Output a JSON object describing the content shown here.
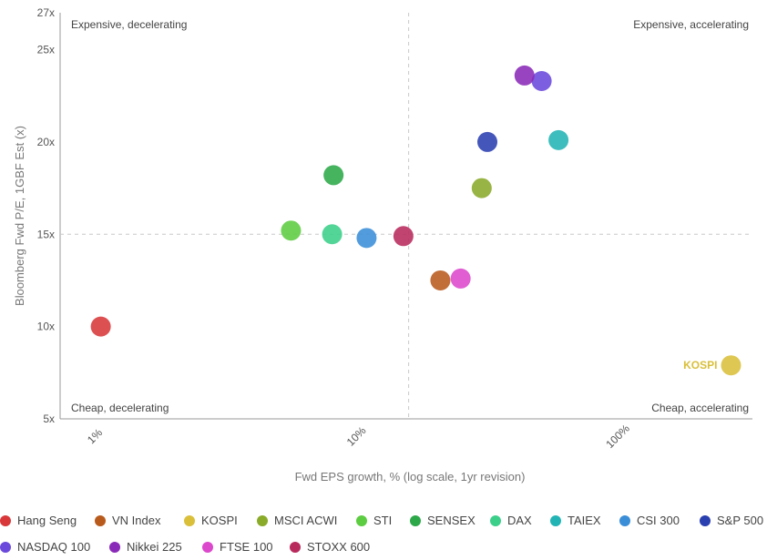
{
  "chart_data": {
    "type": "scatter",
    "title": "",
    "xlabel": "Fwd EPS growth, % (log scale, 1yr revision)",
    "ylabel": "Bloomberg Fwd P/E, 1GBF Est (x)",
    "x_scale": "log",
    "xlim": [
      0.72,
      320
    ],
    "ylim": [
      5,
      27
    ],
    "x_ticks": [
      1,
      10,
      100
    ],
    "x_tick_labels": [
      "1%",
      "10%",
      "100%"
    ],
    "y_ticks": [
      5,
      10,
      15,
      20,
      25,
      27
    ],
    "y_tick_labels": [
      "5x",
      "10x",
      "15x",
      "20x",
      "25x",
      "27x"
    ],
    "x_divider": 15.5,
    "y_divider": 15,
    "grid": false,
    "legend_position": "bottom",
    "quadrants": {
      "top_left": "Expensive, decelerating",
      "top_right": "Expensive, accelerating",
      "bottom_left": "Cheap, decelerating",
      "bottom_right": "Cheap, accelerating"
    },
    "series": [
      {
        "name": "Hang Seng",
        "color": "#d8383a",
        "x": 1.03,
        "y": 10.0
      },
      {
        "name": "VN Index",
        "color": "#b85a1c",
        "x": 20.5,
        "y": 12.5
      },
      {
        "name": "KOSPI",
        "color": "#d9bf3a",
        "x": 265,
        "y": 7.9,
        "label": "KOSPI"
      },
      {
        "name": "MSCI ACWI",
        "color": "#8aaa2a",
        "x": 29.5,
        "y": 17.5
      },
      {
        "name": "STI",
        "color": "#5ccc40",
        "x": 5.5,
        "y": 15.2
      },
      {
        "name": "SENSEX",
        "color": "#2ca848",
        "x": 8.0,
        "y": 18.2
      },
      {
        "name": "DAX",
        "color": "#3bcf8a",
        "x": 7.9,
        "y": 15.0
      },
      {
        "name": "TAIEX",
        "color": "#22b4b4",
        "x": 58,
        "y": 20.1
      },
      {
        "name": "CSI 300",
        "color": "#3a8ed8",
        "x": 10.7,
        "y": 14.8
      },
      {
        "name": "S&P 500",
        "color": "#2a3fb0",
        "x": 31,
        "y": 20.0
      },
      {
        "name": "NASDAQ 100",
        "color": "#6a48dc",
        "x": 50,
        "y": 23.3
      },
      {
        "name": "Nikkei 225",
        "color": "#8a2ab8",
        "x": 43,
        "y": 23.6
      },
      {
        "name": "FTSE 100",
        "color": "#dc48cc",
        "x": 24.5,
        "y": 12.6
      },
      {
        "name": "STOXX 600",
        "color": "#b82a5c",
        "x": 14.8,
        "y": 14.9
      }
    ]
  }
}
